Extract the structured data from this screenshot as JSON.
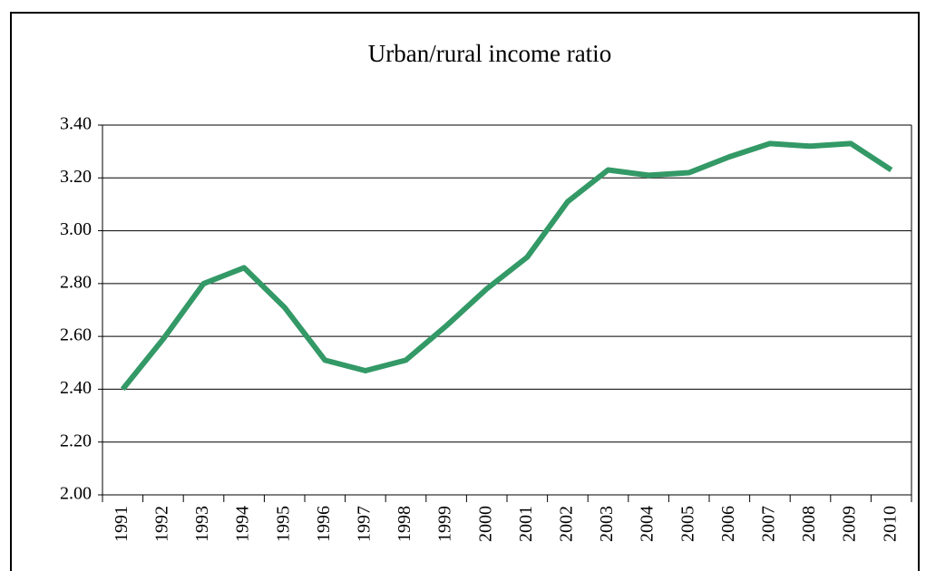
{
  "chart_data": {
    "type": "line",
    "title": "Urban/rural income ratio",
    "categories": [
      "1991",
      "1992",
      "1993",
      "1994",
      "1995",
      "1996",
      "1997",
      "1998",
      "1999",
      "2000",
      "2001",
      "2002",
      "2003",
      "2004",
      "2005",
      "2006",
      "2007",
      "2008",
      "2009",
      "2010"
    ],
    "values": [
      2.4,
      2.59,
      2.8,
      2.86,
      2.71,
      2.51,
      2.47,
      2.51,
      2.64,
      2.78,
      2.9,
      3.11,
      3.23,
      3.21,
      3.22,
      3.28,
      3.33,
      3.32,
      3.33,
      3.23
    ],
    "color": "#339966",
    "ylim": [
      2.0,
      3.4
    ],
    "yticks": [
      {
        "value": 2.0,
        "label": "2.00"
      },
      {
        "value": 2.2,
        "label": "2.20"
      },
      {
        "value": 2.4,
        "label": "2.40"
      },
      {
        "value": 2.6,
        "label": "2.60"
      },
      {
        "value": 2.8,
        "label": "2.80"
      },
      {
        "value": 3.0,
        "label": "3.00"
      },
      {
        "value": 3.2,
        "label": "3.20"
      },
      {
        "value": 3.4,
        "label": "3.40"
      }
    ],
    "grid": true
  }
}
